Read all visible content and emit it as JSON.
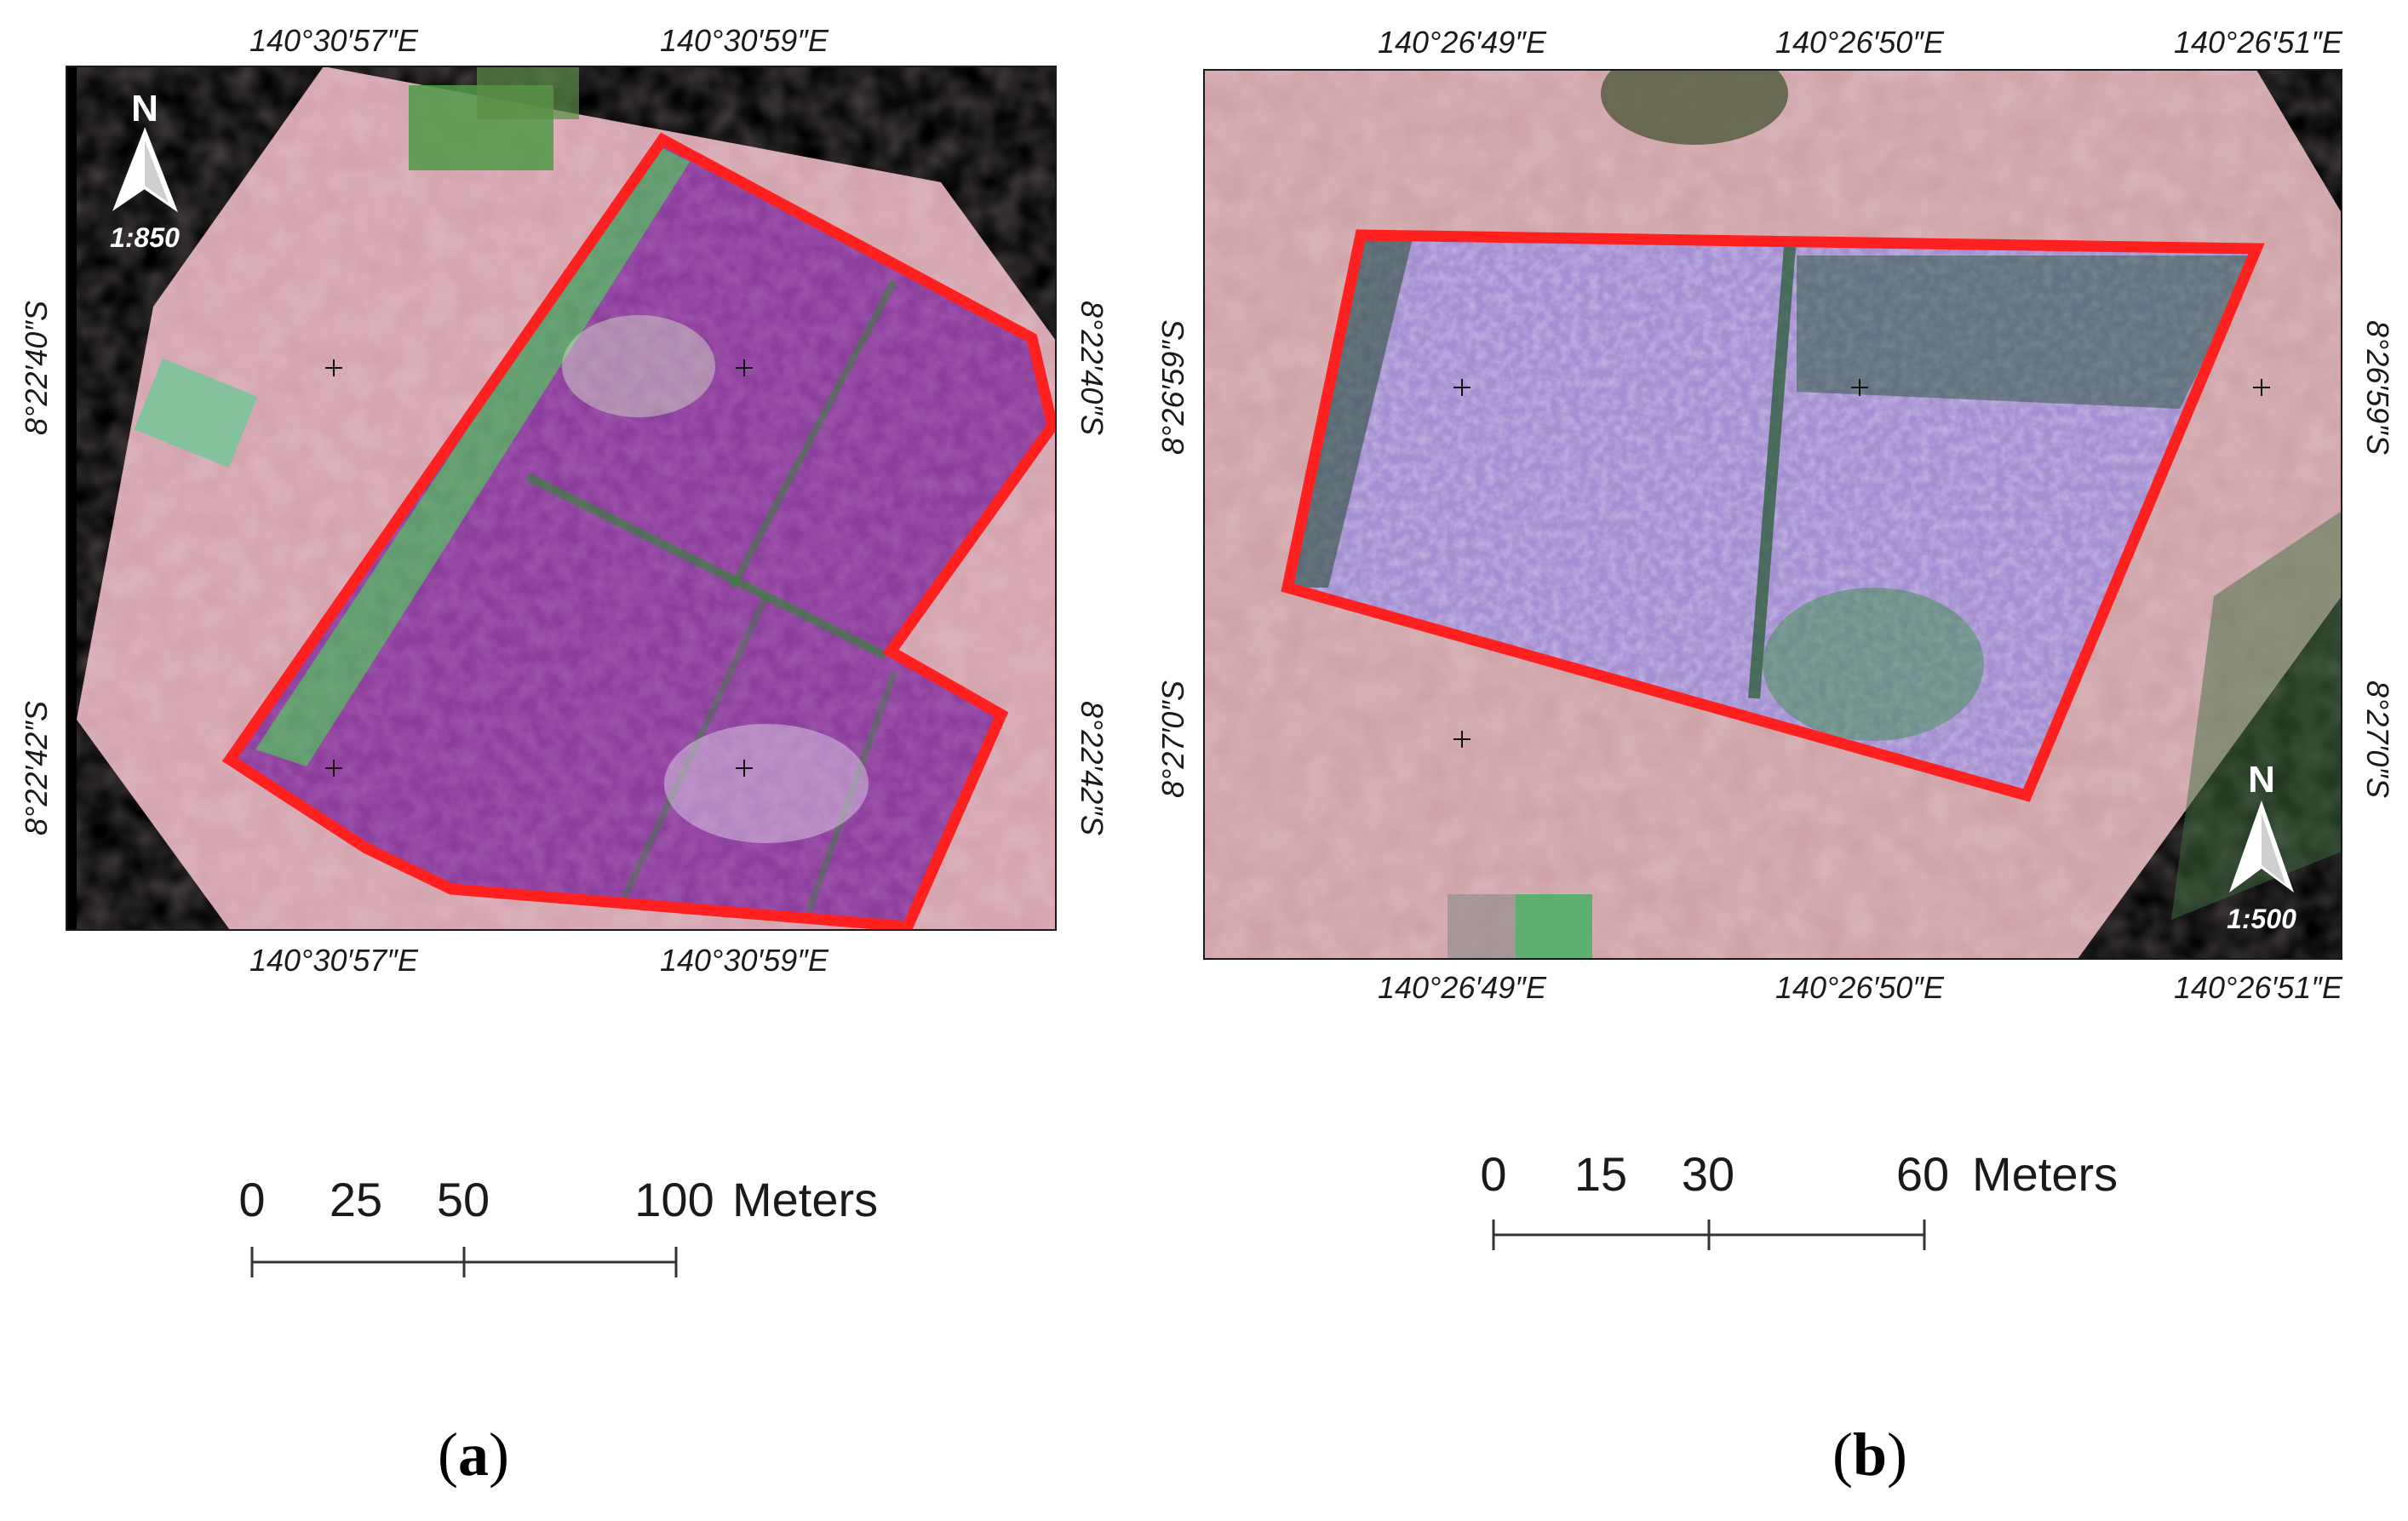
{
  "panel_a": {
    "label_open": "(",
    "label_letter": "a",
    "label_close": ")",
    "lon_top": [
      "140°30′57″E",
      "140°30′59″E"
    ],
    "lon_bottom": [
      "140°30′57″E",
      "140°30′59″E"
    ],
    "lat_left": [
      "8°22′40″S",
      "8°22′42″S"
    ],
    "lat_right": [
      "8°22′40″S",
      "8°22′42″S"
    ],
    "north": "N",
    "ratio": "1:850",
    "scale_ticks": [
      "0",
      "25",
      "50",
      "100"
    ],
    "scale_unit": "Meters",
    "colors": {
      "boundary": "#ff2020",
      "field": "#9a3fa6",
      "background": "#d6a6b0"
    }
  },
  "panel_b": {
    "label_open": "(",
    "label_letter": "b",
    "label_close": ")",
    "lon_top": [
      "140°26′49″E",
      "140°26′50″E",
      "140°26′51″E"
    ],
    "lon_bottom": [
      "140°26′49″E",
      "140°26′50″E",
      "140°26′51″E"
    ],
    "lat_left": [
      "8°26′59″S",
      "8°27′0″S"
    ],
    "lat_right": [
      "8°26′59″S",
      "8°27′0″S"
    ],
    "north": "N",
    "ratio": "1:500",
    "scale_ticks": [
      "0",
      "15",
      "30",
      "60"
    ],
    "scale_unit": "Meters",
    "colors": {
      "boundary": "#ff2020",
      "field": "#a88fd6",
      "background": "#cfa5a5"
    }
  }
}
